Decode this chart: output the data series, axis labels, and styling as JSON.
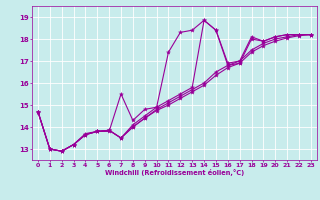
{
  "xlabel": "Windchill (Refroidissement éolien,°C)",
  "ylabel": "",
  "bg_color": "#c8ecec",
  "line_color": "#990099",
  "grid_color": "#ffffff",
  "ylim": [
    12.5,
    19.5
  ],
  "xlim": [
    -0.5,
    23.5
  ],
  "yticks": [
    13,
    14,
    15,
    16,
    17,
    18,
    19
  ],
  "xticks": [
    0,
    1,
    2,
    3,
    4,
    5,
    6,
    7,
    8,
    9,
    10,
    11,
    12,
    13,
    14,
    15,
    16,
    17,
    18,
    19,
    20,
    21,
    22,
    23
  ],
  "series": [
    [
      0,
      14.7
    ],
    [
      1,
      13.0
    ],
    [
      2,
      12.9
    ],
    [
      3,
      13.2
    ],
    [
      4,
      13.7
    ],
    [
      5,
      13.8
    ],
    [
      6,
      13.8
    ],
    [
      7,
      15.5
    ],
    [
      8,
      14.3
    ],
    [
      9,
      14.8
    ],
    [
      10,
      14.9
    ],
    [
      11,
      17.4
    ],
    [
      12,
      18.3
    ],
    [
      13,
      18.4
    ],
    [
      14,
      18.85
    ],
    [
      15,
      18.4
    ],
    [
      16,
      16.9
    ],
    [
      17,
      17.0
    ],
    [
      18,
      18.1
    ],
    [
      19,
      17.9
    ],
    [
      20,
      18.1
    ],
    [
      21,
      18.2
    ],
    [
      22,
      18.2
    ],
    [
      23,
      18.2
    ]
  ],
  "series2": [
    [
      0,
      14.7
    ],
    [
      1,
      13.0
    ],
    [
      2,
      12.9
    ],
    [
      3,
      13.2
    ],
    [
      4,
      13.65
    ],
    [
      5,
      13.8
    ],
    [
      6,
      13.85
    ],
    [
      7,
      13.5
    ],
    [
      8,
      14.1
    ],
    [
      9,
      14.5
    ],
    [
      10,
      14.9
    ],
    [
      11,
      15.2
    ],
    [
      12,
      15.5
    ],
    [
      13,
      15.8
    ],
    [
      14,
      18.85
    ],
    [
      15,
      18.4
    ],
    [
      16,
      16.8
    ],
    [
      17,
      16.9
    ],
    [
      18,
      18.0
    ],
    [
      19,
      17.9
    ],
    [
      20,
      18.1
    ],
    [
      21,
      18.2
    ],
    [
      22,
      18.2
    ],
    [
      23,
      18.2
    ]
  ],
  "series3": [
    [
      0,
      14.7
    ],
    [
      1,
      13.0
    ],
    [
      2,
      12.9
    ],
    [
      3,
      13.2
    ],
    [
      4,
      13.65
    ],
    [
      5,
      13.8
    ],
    [
      6,
      13.85
    ],
    [
      7,
      13.5
    ],
    [
      8,
      14.0
    ],
    [
      9,
      14.4
    ],
    [
      10,
      14.8
    ],
    [
      11,
      15.1
    ],
    [
      12,
      15.4
    ],
    [
      13,
      15.7
    ],
    [
      14,
      16.0
    ],
    [
      15,
      16.5
    ],
    [
      16,
      16.8
    ],
    [
      17,
      17.0
    ],
    [
      18,
      17.5
    ],
    [
      19,
      17.8
    ],
    [
      20,
      18.0
    ],
    [
      21,
      18.1
    ],
    [
      22,
      18.2
    ],
    [
      23,
      18.2
    ]
  ],
  "series4": [
    [
      0,
      14.7
    ],
    [
      1,
      13.0
    ],
    [
      2,
      12.9
    ],
    [
      3,
      13.2
    ],
    [
      4,
      13.65
    ],
    [
      5,
      13.8
    ],
    [
      6,
      13.85
    ],
    [
      7,
      13.5
    ],
    [
      8,
      14.0
    ],
    [
      9,
      14.4
    ],
    [
      10,
      14.75
    ],
    [
      11,
      15.0
    ],
    [
      12,
      15.3
    ],
    [
      13,
      15.6
    ],
    [
      14,
      15.9
    ],
    [
      15,
      16.35
    ],
    [
      16,
      16.7
    ],
    [
      17,
      16.9
    ],
    [
      18,
      17.4
    ],
    [
      19,
      17.7
    ],
    [
      20,
      17.9
    ],
    [
      21,
      18.05
    ],
    [
      22,
      18.15
    ],
    [
      23,
      18.2
    ]
  ]
}
